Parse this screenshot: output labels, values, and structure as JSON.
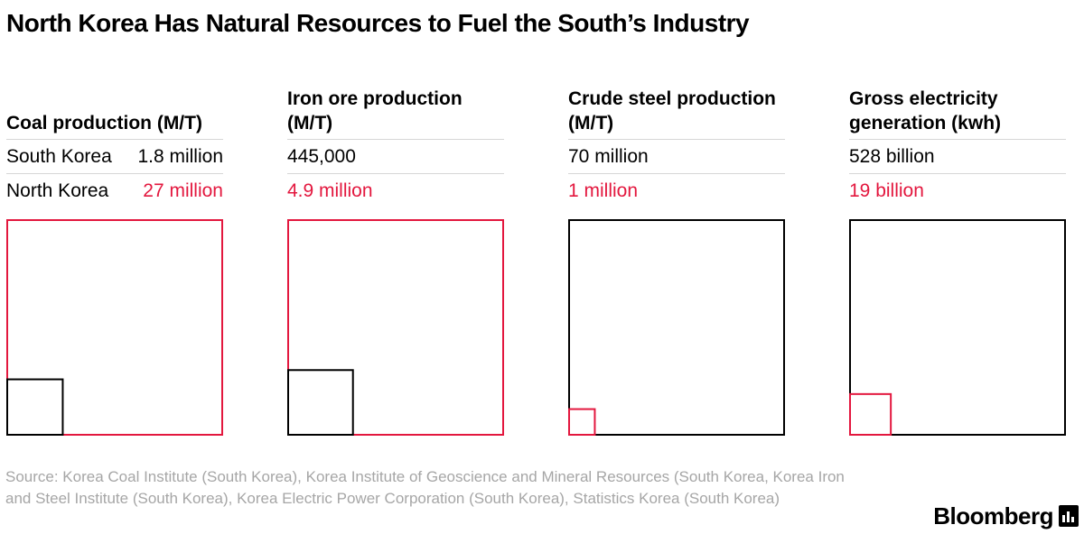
{
  "title": "North Korea Has Natural Resources to Fuel the South’s Industry",
  "labels": {
    "south": "South Korea",
    "north": "North Korea"
  },
  "colors": {
    "south": "#000000",
    "north": "#e3173e",
    "rule": "#d6d6d6",
    "source": "#a6a6a6"
  },
  "chart_data": [
    {
      "type": "proportional-area-squares",
      "title": "Coal production (M/T)",
      "south": {
        "display": "1.8 million",
        "value": 1800000
      },
      "north": {
        "display": "27 million",
        "value": 27000000
      }
    },
    {
      "type": "proportional-area-squares",
      "title": "Iron ore production (M/T)",
      "south": {
        "display": "445,000",
        "value": 445000
      },
      "north": {
        "display": "4.9 million",
        "value": 4900000
      }
    },
    {
      "type": "proportional-area-squares",
      "title": "Crude steel production (M/T)",
      "south": {
        "display": "70 million",
        "value": 70000000
      },
      "north": {
        "display": "1 million",
        "value": 1000000
      }
    },
    {
      "type": "proportional-area-squares",
      "title": "Gross electricity generation (kwh)",
      "south": {
        "display": "528 billion",
        "value": 528000000000
      },
      "north": {
        "display": "19 billion",
        "value": 19000000000
      }
    }
  ],
  "source": "Source: Korea Coal Institute (South Korea), Korea Institute of Geoscience and Mineral Resources (South Korea, Korea Iron and Steel Institute (South Korea), Korea Electric Power Corporation (South Korea), Statistics Korea (South Korea)",
  "brand": {
    "name": "Bloomberg",
    "icon": "bloomberg-terminal-icon"
  }
}
